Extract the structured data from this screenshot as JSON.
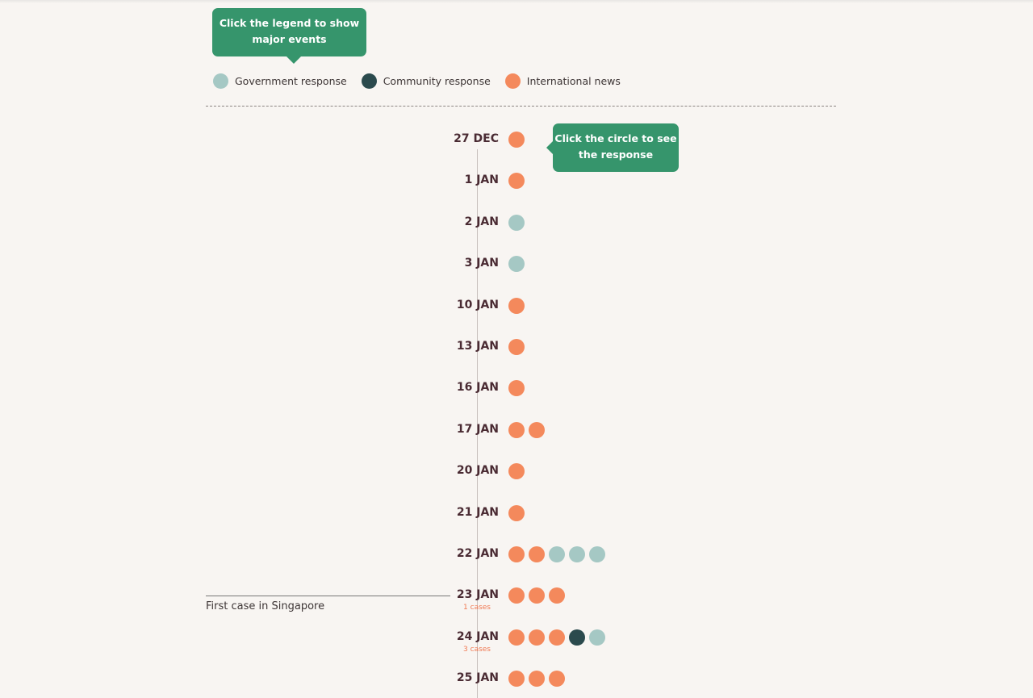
{
  "colors": {
    "government": "#a5c8c4",
    "community": "#2b4a4d",
    "international": "#f4895c",
    "tooltip": "#36956c"
  },
  "tooltips": {
    "legend": "Click the legend to show major events",
    "circle": "Click the circle to see the response"
  },
  "legend": [
    {
      "key": "government",
      "label": "Government response"
    },
    {
      "key": "community",
      "label": "Community response"
    },
    {
      "key": "international",
      "label": "International news"
    }
  ],
  "annotation": {
    "label": "First case in Singapore"
  },
  "timeline": [
    {
      "date": "27 DEC",
      "events": [
        "international"
      ]
    },
    {
      "date": "1 JAN",
      "events": [
        "international"
      ]
    },
    {
      "date": "2 JAN",
      "events": [
        "government"
      ]
    },
    {
      "date": "3 JAN",
      "events": [
        "government"
      ]
    },
    {
      "date": "10 JAN",
      "events": [
        "international"
      ]
    },
    {
      "date": "13 JAN",
      "events": [
        "international"
      ]
    },
    {
      "date": "16 JAN",
      "events": [
        "international"
      ]
    },
    {
      "date": "17 JAN",
      "events": [
        "international",
        "international"
      ]
    },
    {
      "date": "20 JAN",
      "events": [
        "international"
      ]
    },
    {
      "date": "21 JAN",
      "events": [
        "international"
      ]
    },
    {
      "date": "22 JAN",
      "events": [
        "international",
        "international",
        "government",
        "government",
        "government"
      ]
    },
    {
      "date": "23 JAN",
      "cases": "1 cases",
      "events": [
        "international",
        "international",
        "international"
      ]
    },
    {
      "date": "24 JAN",
      "cases": "3 cases",
      "events": [
        "international",
        "international",
        "international",
        "community",
        "government"
      ]
    },
    {
      "date": "25 JAN",
      "events": [
        "international",
        "international",
        "international"
      ]
    }
  ]
}
